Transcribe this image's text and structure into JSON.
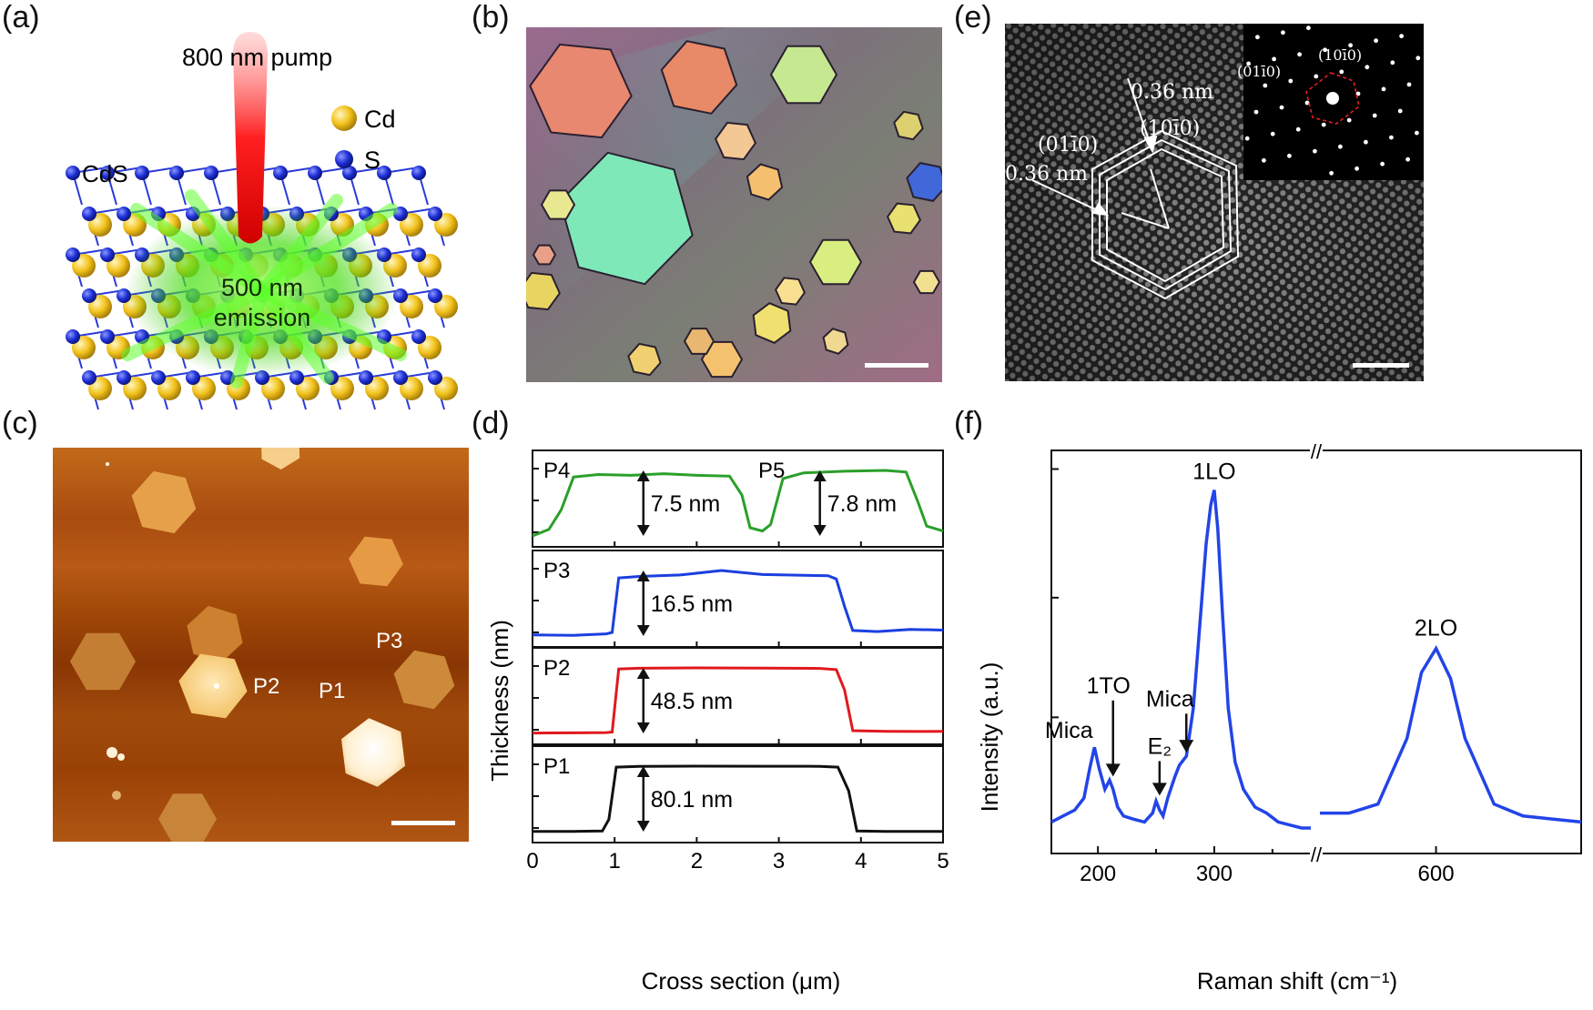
{
  "panel_labels": {
    "a": "(a)",
    "b": "(b)",
    "c": "(c)",
    "d": "(d)",
    "e": "(e)",
    "f": "(f)"
  },
  "panel_a": {
    "pump_label": "800 nm pump",
    "legend": [
      {
        "label": "Cd",
        "color": "#f2c21b"
      },
      {
        "label": "S",
        "color": "#1e2fd6"
      }
    ],
    "crystal_label": "CdS",
    "emission_line1": "500 nm",
    "emission_line2": "emission"
  },
  "panel_c": {
    "points": [
      {
        "label": "P1"
      },
      {
        "label": "P2"
      },
      {
        "label": "P3"
      }
    ]
  },
  "panel_e": {
    "spacing_top": "0.36 nm",
    "spacing_left": "0.36 nm",
    "plane_top": "(10ī0)",
    "plane_left": "(01ī0)",
    "inset_plane_left": "(01ī0)",
    "inset_plane_right": "(10ī0)"
  },
  "chart_data": [
    {
      "type": "line",
      "panel": "d",
      "xlabel": "Cross section (μm)",
      "ylabel": "Thickness (nm)",
      "xlim": [
        0,
        5
      ],
      "xticks": [
        "0",
        "1",
        "2",
        "3",
        "4",
        "5"
      ],
      "series": [
        {
          "name": "P4",
          "color": "#2aa02a",
          "thickness_labels": [
            "7.5 nm",
            "7.8 nm"
          ],
          "second_name": "P5",
          "x": [
            0,
            0.2,
            0.35,
            0.5,
            0.8,
            1.2,
            1.6,
            2.0,
            2.4,
            2.55,
            2.65,
            2.8,
            2.9,
            3.05,
            3.3,
            3.8,
            4.3,
            4.55,
            4.7,
            4.8,
            5.0
          ],
          "y": [
            0.0,
            0.8,
            3.2,
            7.2,
            7.5,
            7.4,
            7.6,
            7.4,
            7.3,
            5.0,
            1.0,
            0.6,
            1.4,
            7.0,
            7.7,
            7.9,
            8.0,
            7.8,
            4.0,
            1.2,
            0.6
          ]
        },
        {
          "name": "P3",
          "color": "#1a3fe0",
          "thickness_labels": [
            "16.5 nm"
          ],
          "x": [
            0,
            0.5,
            0.9,
            0.97,
            1.05,
            1.3,
            1.8,
            2.3,
            2.8,
            3.3,
            3.6,
            3.7,
            3.8,
            3.9,
            4.2,
            4.6,
            5.0
          ],
          "y": [
            0.3,
            0.2,
            0.6,
            1.0,
            15.8,
            16.2,
            16.6,
            17.8,
            16.7,
            16.5,
            16.4,
            15.5,
            8.0,
            1.5,
            1.2,
            1.8,
            1.6
          ]
        },
        {
          "name": "P2",
          "color": "#e0191f",
          "thickness_labels": [
            "48.5 nm"
          ],
          "x": [
            0,
            0.5,
            0.9,
            0.97,
            1.05,
            1.3,
            2.0,
            2.8,
            3.5,
            3.7,
            3.8,
            3.9,
            4.3,
            4.7,
            5.0
          ],
          "y": [
            0.3,
            0.4,
            0.6,
            1.0,
            47.5,
            48.0,
            48.3,
            48.1,
            47.9,
            47.0,
            32.0,
            2.0,
            1.5,
            1.4,
            1.5
          ]
        },
        {
          "name": "P1",
          "color": "#111111",
          "thickness_labels": [
            "80.1 nm"
          ],
          "x": [
            0,
            0.5,
            0.85,
            0.93,
            1.02,
            1.3,
            2.0,
            2.8,
            3.5,
            3.72,
            3.85,
            3.95,
            4.3,
            5.0
          ],
          "y": [
            0.3,
            0.3,
            0.8,
            15.0,
            79.0,
            80.0,
            80.2,
            80.1,
            80.0,
            79.0,
            50.0,
            0.8,
            0.3,
            0.3
          ]
        }
      ]
    },
    {
      "type": "line",
      "panel": "f",
      "xlabel": "Raman shift (cm⁻¹)",
      "ylabel": "Intensity (a.u.)",
      "xticks": [
        "200",
        "300",
        "600"
      ],
      "axis_break": "//",
      "color": "#2244e8",
      "peaks": [
        {
          "label": "Mica",
          "x": 197
        },
        {
          "label": "1TO",
          "x": 213
        },
        {
          "label": "E₂",
          "x": 253
        },
        {
          "label": "Mica",
          "x": 276
        },
        {
          "label": "1LO",
          "x": 300
        },
        {
          "label": "2LO",
          "x": 600
        }
      ],
      "segment1": {
        "x": [
          160,
          170,
          180,
          188,
          193,
          197,
          201,
          206,
          210,
          213,
          217,
          222,
          230,
          240,
          247,
          250,
          253,
          256,
          260,
          266,
          270,
          276,
          282,
          288,
          293,
          297,
          300,
          303,
          307,
          312,
          318,
          325,
          335,
          345,
          355,
          365,
          375,
          383
        ],
        "y": [
          0.02,
          0.04,
          0.06,
          0.1,
          0.2,
          0.27,
          0.2,
          0.13,
          0.16,
          0.13,
          0.07,
          0.04,
          0.03,
          0.02,
          0.05,
          0.09,
          0.06,
          0.04,
          0.1,
          0.17,
          0.21,
          0.24,
          0.4,
          0.7,
          0.95,
          1.08,
          1.13,
          1.0,
          0.72,
          0.4,
          0.22,
          0.13,
          0.07,
          0.05,
          0.02,
          0.01,
          0.0,
          0.0
        ]
      },
      "segment2": {
        "x": [
          560,
          570,
          580,
          590,
          595,
          600,
          605,
          610,
          620,
          630,
          640,
          650
        ],
        "y": [
          0.05,
          0.05,
          0.08,
          0.3,
          0.52,
          0.6,
          0.5,
          0.3,
          0.08,
          0.04,
          0.03,
          0.02
        ]
      }
    }
  ]
}
